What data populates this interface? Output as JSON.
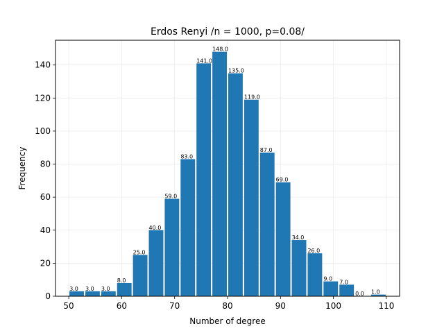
{
  "chart_data": {
    "type": "bar",
    "title": "Erdos Renyi /n = 1000, p=0.08/",
    "xlabel": "Number of degree",
    "ylabel": "Frequency",
    "xlim": [
      47.5,
      112.5
    ],
    "ylim": [
      0,
      155
    ],
    "xticks": [
      50,
      60,
      70,
      80,
      90,
      100,
      110
    ],
    "yticks": [
      0,
      20,
      40,
      60,
      80,
      100,
      120,
      140
    ],
    "grid": true,
    "bar_color": "#1f77b4",
    "bin_width": 3,
    "bin_start": 50,
    "values": [
      3,
      3,
      3,
      8,
      25,
      40,
      59,
      83,
      141,
      148,
      135,
      119,
      87,
      69,
      34,
      26,
      9,
      7,
      0,
      1
    ],
    "value_labels": [
      "3.0",
      "3.0",
      "3.0",
      "8.0",
      "25.0",
      "40.0",
      "59.0",
      "83.0",
      "141.0",
      "148.0",
      "135.0",
      "119.0",
      "87.0",
      "69.0",
      "34.0",
      "26.0",
      "9.0",
      "7.0",
      "0.0",
      "1.0"
    ]
  }
}
